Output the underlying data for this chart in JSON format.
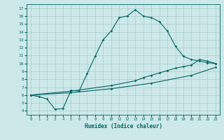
{
  "xlabel": "Humidex (Indice chaleur)",
  "bg_color": "#cde8e8",
  "grid_color": "#a8cccc",
  "line_color": "#006666",
  "xlim": [
    -0.5,
    23.5
  ],
  "ylim": [
    3.5,
    17.5
  ],
  "xticks": [
    0,
    1,
    2,
    3,
    4,
    5,
    6,
    7,
    8,
    9,
    10,
    11,
    12,
    13,
    14,
    15,
    16,
    17,
    18,
    19,
    20,
    21,
    22,
    23
  ],
  "yticks": [
    4,
    5,
    6,
    7,
    8,
    9,
    10,
    11,
    12,
    13,
    14,
    15,
    16,
    17
  ],
  "line1_x": [
    0,
    1,
    2,
    3,
    4,
    5,
    6,
    7,
    8,
    9,
    10,
    11,
    12,
    13,
    14,
    15,
    16,
    17,
    18,
    19,
    20,
    21,
    22,
    23
  ],
  "line1_y": [
    6.0,
    5.8,
    5.5,
    4.2,
    4.3,
    6.6,
    6.5,
    8.7,
    10.9,
    13.0,
    14.1,
    15.8,
    16.0,
    16.8,
    16.0,
    15.8,
    15.3,
    14.1,
    12.2,
    10.9,
    10.5,
    10.3,
    10.1,
    10.0
  ],
  "line2_x": [
    0,
    5,
    10,
    13,
    14,
    15,
    16,
    17,
    18,
    19,
    20,
    21,
    22,
    23
  ],
  "line2_y": [
    6.0,
    6.5,
    7.2,
    7.8,
    8.2,
    8.5,
    8.8,
    9.1,
    9.4,
    9.6,
    9.8,
    10.5,
    10.3,
    10.0
  ],
  "line3_x": [
    0,
    5,
    10,
    15,
    20,
    23
  ],
  "line3_y": [
    6.0,
    6.3,
    6.8,
    7.5,
    8.5,
    9.5
  ]
}
